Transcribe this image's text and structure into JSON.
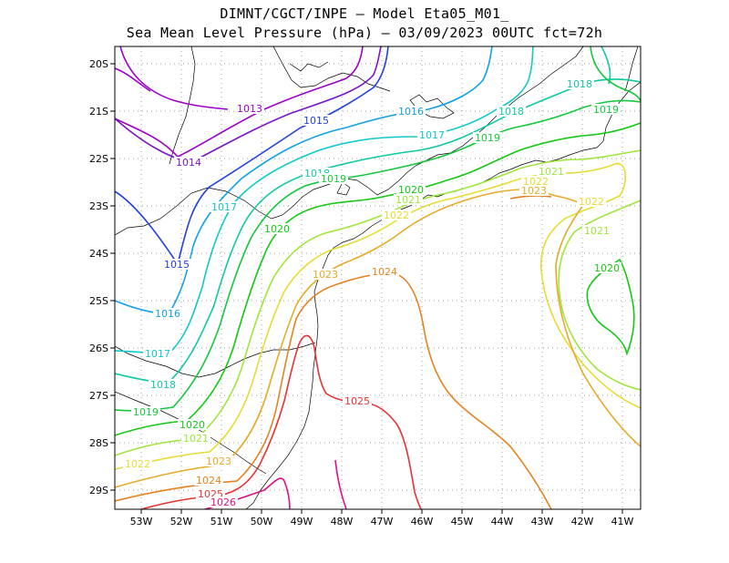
{
  "title_line1": "DIMNT/CGCT/INPE —  Model Eta05_M01_",
  "title_line2": "Sea Mean Level Pressure (hPa) — 03/09/2023 00UTC fct=72h",
  "map": {
    "lon_range": [
      -53.6,
      -40.5
    ],
    "lat_range": [
      -29.4,
      -19.8
    ],
    "x_ticks": [
      "53W",
      "52W",
      "51W",
      "50W",
      "49W",
      "48W",
      "47W",
      "46W",
      "45W",
      "44W",
      "43W",
      "42W",
      "41W"
    ],
    "y_ticks": [
      "20S",
      "21S",
      "22S",
      "23S",
      "24S",
      "25S",
      "26S",
      "27S",
      "28S",
      "29S"
    ],
    "grid": "dotted"
  },
  "contour_colors": {
    "1013": "#9b00c8",
    "1014": "#7a14c8",
    "1015": "#2140e0",
    "1016": "#12a0e6",
    "1017": "#10c8c8",
    "1018": "#10c8a0",
    "1019": "#14c83c",
    "1020": "#14c814",
    "1021": "#9ee63c",
    "1022": "#e6dc32",
    "1023": "#e6aa28",
    "1024": "#e6821e",
    "1025": "#e63232",
    "1026": "#dc0f82"
  },
  "contour_labels": [
    {
      "text": "1013",
      "color": "#9b00c8"
    },
    {
      "text": "1014",
      "color": "#7a14c8"
    },
    {
      "text": "1015",
      "color": "#2140e0"
    },
    {
      "text": "1015",
      "color": "#2140e0"
    },
    {
      "text": "1016",
      "color": "#12a0e6"
    },
    {
      "text": "1016",
      "color": "#12a0e6"
    },
    {
      "text": "1017",
      "color": "#10c8c8"
    },
    {
      "text": "1017",
      "color": "#10c8c8"
    },
    {
      "text": "1017",
      "color": "#10c8c8"
    },
    {
      "text": "1018",
      "color": "#10c8a0"
    },
    {
      "text": "1018",
      "color": "#10c8a0"
    },
    {
      "text": "1018",
      "color": "#10c8a0"
    },
    {
      "text": "1018",
      "color": "#10c8a0"
    },
    {
      "text": "1019",
      "color": "#14c83c"
    },
    {
      "text": "1019",
      "color": "#14c83c"
    },
    {
      "text": "1019",
      "color": "#14c83c"
    },
    {
      "text": "1019",
      "color": "#14c83c"
    },
    {
      "text": "1020",
      "color": "#14c814"
    },
    {
      "text": "1020",
      "color": "#14c814"
    },
    {
      "text": "1020",
      "color": "#14c814"
    },
    {
      "text": "1020",
      "color": "#14c814"
    },
    {
      "text": "1021",
      "color": "#9ee63c"
    },
    {
      "text": "1021",
      "color": "#9ee63c"
    },
    {
      "text": "1021",
      "color": "#9ee63c"
    },
    {
      "text": "1021",
      "color": "#9ee63c"
    },
    {
      "text": "1022",
      "color": "#e6dc32"
    },
    {
      "text": "1022",
      "color": "#e6dc32"
    },
    {
      "text": "1022",
      "color": "#e6dc32"
    },
    {
      "text": "1022",
      "color": "#e6dc32"
    },
    {
      "text": "1023",
      "color": "#e6aa28"
    },
    {
      "text": "1023",
      "color": "#e6aa28"
    },
    {
      "text": "1023",
      "color": "#e6aa28"
    },
    {
      "text": "1024",
      "color": "#e6821e"
    },
    {
      "text": "1024",
      "color": "#e6821e"
    },
    {
      "text": "1025",
      "color": "#e63232"
    },
    {
      "text": "1025",
      "color": "#e63232"
    },
    {
      "text": "1026",
      "color": "#dc0f82"
    }
  ]
}
